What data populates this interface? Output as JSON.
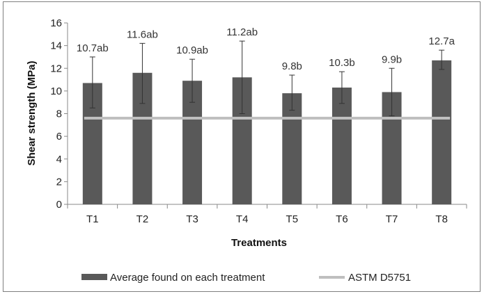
{
  "chart_data": {
    "type": "bar",
    "xlabel": "Treatments",
    "ylabel": "Shear strength (MPa)",
    "ylim": [
      0,
      16
    ],
    "yticks": [
      0,
      2,
      4,
      6,
      8,
      10,
      12,
      14,
      16
    ],
    "categories": [
      "T1",
      "T2",
      "T3",
      "T4",
      "T5",
      "T6",
      "T7",
      "T8"
    ],
    "series": [
      {
        "name": "Average found on each treatment",
        "type": "bar",
        "color": "#595959",
        "values": [
          10.7,
          11.6,
          10.9,
          11.2,
          9.8,
          10.3,
          9.9,
          12.7
        ],
        "error_upper": [
          13.0,
          14.2,
          12.8,
          14.4,
          11.4,
          11.7,
          12.0,
          13.6
        ],
        "error_lower": [
          8.5,
          8.9,
          9.0,
          8.0,
          8.3,
          8.9,
          7.8,
          11.9
        ],
        "labels": [
          "10.7ab",
          "11.6ab",
          "10.9ab",
          "11.2ab",
          "9.8b",
          "10.3b",
          "9.9b",
          "12.7a"
        ]
      },
      {
        "name": "ASTM D5751",
        "type": "line",
        "color": "#bfbfbf",
        "value": 7.6
      }
    ],
    "grid": false,
    "legend_position": "bottom"
  }
}
